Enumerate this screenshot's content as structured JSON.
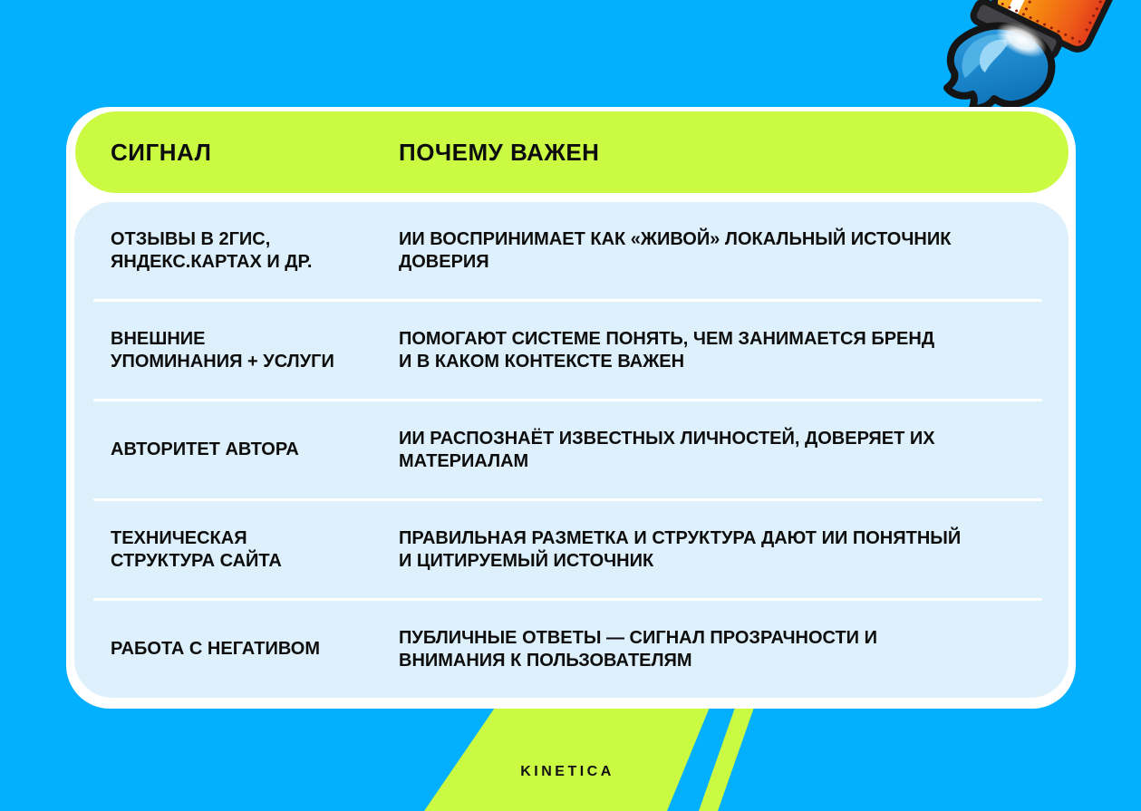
{
  "table": {
    "header": {
      "col1": "СИГНАЛ",
      "col2": "ПОЧЕМУ ВАЖЕН"
    },
    "rows": [
      {
        "signal_lines": [
          "ОТЗЫВЫ В 2ГИС,",
          "ЯНДЕКС.КАРТАХ И ДР."
        ],
        "reason_lines": [
          "ИИ ВОСПРИНИМАЕТ КАК «ЖИВОЙ» ЛОКАЛЬНЫЙ ИСТОЧНИК",
          "ДОВЕРИЯ"
        ]
      },
      {
        "signal_lines": [
          "ВНЕШНИЕ",
          "УПОМИНАНИЯ + УСЛУГИ"
        ],
        "reason_lines": [
          "ПОМОГАЮТ СИСТЕМЕ ПОНЯТЬ, ЧЕМ ЗАНИМАЕТСЯ БРЕНД",
          "И В КАКОМ КОНТЕКСТЕ ВАЖЕН"
        ]
      },
      {
        "signal_lines": [
          "АВТОРИТЕТ АВТОРА"
        ],
        "reason_lines": [
          "ИИ РАСПОЗНАЁТ ИЗВЕСТНЫХ ЛИЧНОСТЕЙ, ДОВЕРЯЕТ ИХ",
          "МАТЕРИАЛАМ"
        ]
      },
      {
        "signal_lines": [
          "ТЕХНИЧЕСКАЯ",
          "СТРУКТУРА САЙТА"
        ],
        "reason_lines": [
          "ПРАВИЛЬНАЯ РАЗМЕТКА И СТРУКТУРА ДАЮТ ИИ ПОНЯТНЫЙ",
          "И ЦИТИРУЕМЫЙ ИСТОЧНИК"
        ]
      },
      {
        "signal_lines": [
          "РАБОТА С НЕГАТИВОМ"
        ],
        "reason_lines": [
          "ПУБЛИЧНЫЕ ОТВЕТЫ — СИГНАЛ ПРОЗРАЧНОСТИ И",
          "ВНИМАНИЯ К ПОЛЬЗОВАТЕЛЯМ"
        ]
      }
    ]
  },
  "footer": {
    "brand": "KINETICA"
  },
  "illustration": {
    "name": "rocket-flame"
  },
  "colors": {
    "background_blue": "#03AFFF",
    "accent_green": "#CBFA43",
    "row_light_blue": "#DDF0FB",
    "card_white": "#FFFFFF",
    "text_black": "#0D0D0D",
    "flame_blue": "#1E8CD4",
    "rocket_orange": "#F58211"
  }
}
